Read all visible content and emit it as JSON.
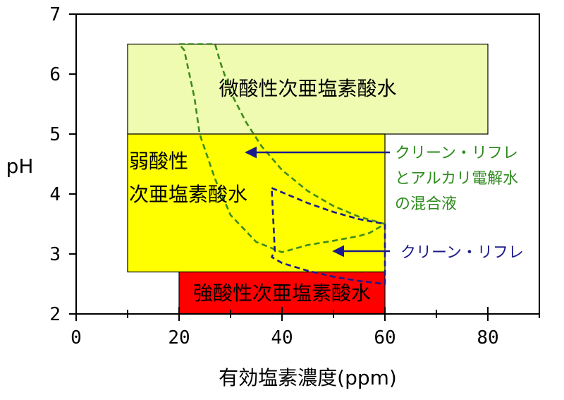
{
  "chart_data": {
    "type": "area",
    "title": "",
    "xlabel": "有効塩素濃度(ppm)",
    "ylabel": "pH",
    "xlim": [
      0,
      90
    ],
    "ylim": [
      2,
      7
    ],
    "xticks": [
      "0",
      "20",
      "40",
      "60",
      "80"
    ],
    "xtick_values": [
      0,
      20,
      40,
      60,
      80
    ],
    "xminor": [
      10,
      30,
      50,
      70,
      90
    ],
    "yticks": [
      "2",
      "3",
      "4",
      "5",
      "6",
      "7"
    ],
    "ytick_values": [
      2,
      3,
      4,
      5,
      6,
      7
    ],
    "grid": false,
    "regions": [
      {
        "name": "微酸性次亜塩素酸水",
        "label_lines": [
          "微酸性次亜塩素酸水"
        ],
        "x": [
          10,
          80
        ],
        "y": [
          5.0,
          6.5
        ],
        "color": "#eefbb0"
      },
      {
        "name": "弱酸性次亜塩素酸水",
        "label_lines": [
          "弱酸性",
          "次亜塩素酸水"
        ],
        "x": [
          10,
          60
        ],
        "y": [
          2.7,
          5.0
        ],
        "color": "#ffff00"
      },
      {
        "name": "強酸性次亜塩素酸水",
        "label_lines": [
          "強酸性次亜塩素酸水"
        ],
        "x": [
          20,
          60
        ],
        "y": [
          2.0,
          2.7
        ],
        "color": "#ff0000"
      }
    ],
    "dashed_areas": [
      {
        "name": "クリーン・リフレとアルカリ電解水の混合液",
        "color": "#3d8b1e",
        "points": [
          [
            20,
            6.5
          ],
          [
            27,
            6.5
          ],
          [
            28,
            6.2
          ],
          [
            30,
            5.7
          ],
          [
            33,
            5.2
          ],
          [
            36,
            4.8
          ],
          [
            40,
            4.4
          ],
          [
            45,
            4.05
          ],
          [
            50,
            3.8
          ],
          [
            55,
            3.62
          ],
          [
            60,
            3.5
          ],
          [
            57,
            3.35
          ],
          [
            55,
            3.3
          ],
          [
            50,
            3.22
          ],
          [
            45,
            3.15
          ],
          [
            40,
            3.03
          ],
          [
            35,
            3.2
          ],
          [
            30,
            3.65
          ],
          [
            27,
            4.25
          ],
          [
            25,
            4.75
          ],
          [
            24,
            5.0
          ],
          [
            23,
            5.6
          ],
          [
            22,
            6.0
          ],
          [
            21,
            6.4
          ],
          [
            20,
            6.5
          ]
        ]
      },
      {
        "name": "クリーン・リフレ",
        "color": "#1a1a8c",
        "points": [
          [
            38,
            4.1
          ],
          [
            45,
            3.85
          ],
          [
            50,
            3.7
          ],
          [
            55,
            3.58
          ],
          [
            60,
            3.5
          ],
          [
            60,
            2.5
          ],
          [
            55,
            2.55
          ],
          [
            50,
            2.62
          ],
          [
            45,
            2.72
          ],
          [
            40,
            2.85
          ],
          [
            38,
            2.95
          ],
          [
            38.6,
            3.05
          ],
          [
            38,
            4.1
          ]
        ]
      }
    ],
    "annotations": [
      {
        "lines": [
          "クリーン・リフレ",
          "とアルカリ電解水",
          "の混合液"
        ],
        "color": "#2e8b1e",
        "arrow_color": "#1a1a8c",
        "arrow_to": [
          33,
          4.7
        ]
      },
      {
        "lines": [
          "クリーン・リフレ"
        ],
        "color": "#1a1a8c",
        "arrow_color": "#1a1a8c",
        "arrow_to": [
          50,
          3.05
        ]
      }
    ]
  }
}
